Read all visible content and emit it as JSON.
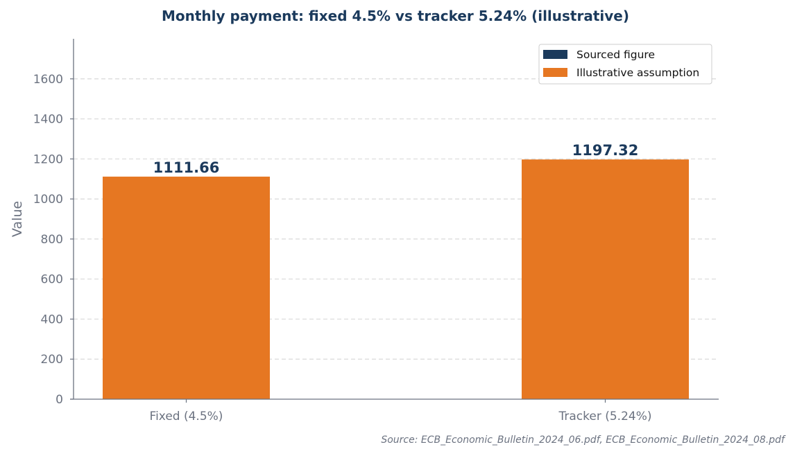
{
  "chart_data": {
    "type": "bar",
    "title": "Monthly payment: fixed 4.5% vs tracker 5.24% (illustrative)",
    "xlabel": "",
    "ylabel": "Value",
    "categories": [
      "Fixed (4.5%)",
      "Tracker (5.24%)"
    ],
    "values": [
      1111.66,
      1197.32
    ],
    "value_labels": [
      "1111.66",
      "1197.32"
    ],
    "bar_kind": [
      "Illustrative assumption",
      "Illustrative assumption"
    ],
    "ylim": [
      0,
      1800
    ],
    "yticks": [
      0,
      200,
      400,
      600,
      800,
      1000,
      1200,
      1400,
      1600
    ],
    "grid": "horizontal dashed",
    "legend": {
      "placement": "top-right",
      "entries": [
        {
          "label": "Sourced figure",
          "color": "#1b3a5c"
        },
        {
          "label": "Illustrative assumption",
          "color": "#e67722"
        }
      ]
    },
    "source": "Source: ECB_Economic_Bulletin_2024_06.pdf, ECB_Economic_Bulletin_2024_08.pdf"
  },
  "colors": {
    "sourced": "#1b3a5c",
    "illustrative": "#e67722",
    "axis": "#6b7280",
    "grid": "#d9d9d9"
  }
}
